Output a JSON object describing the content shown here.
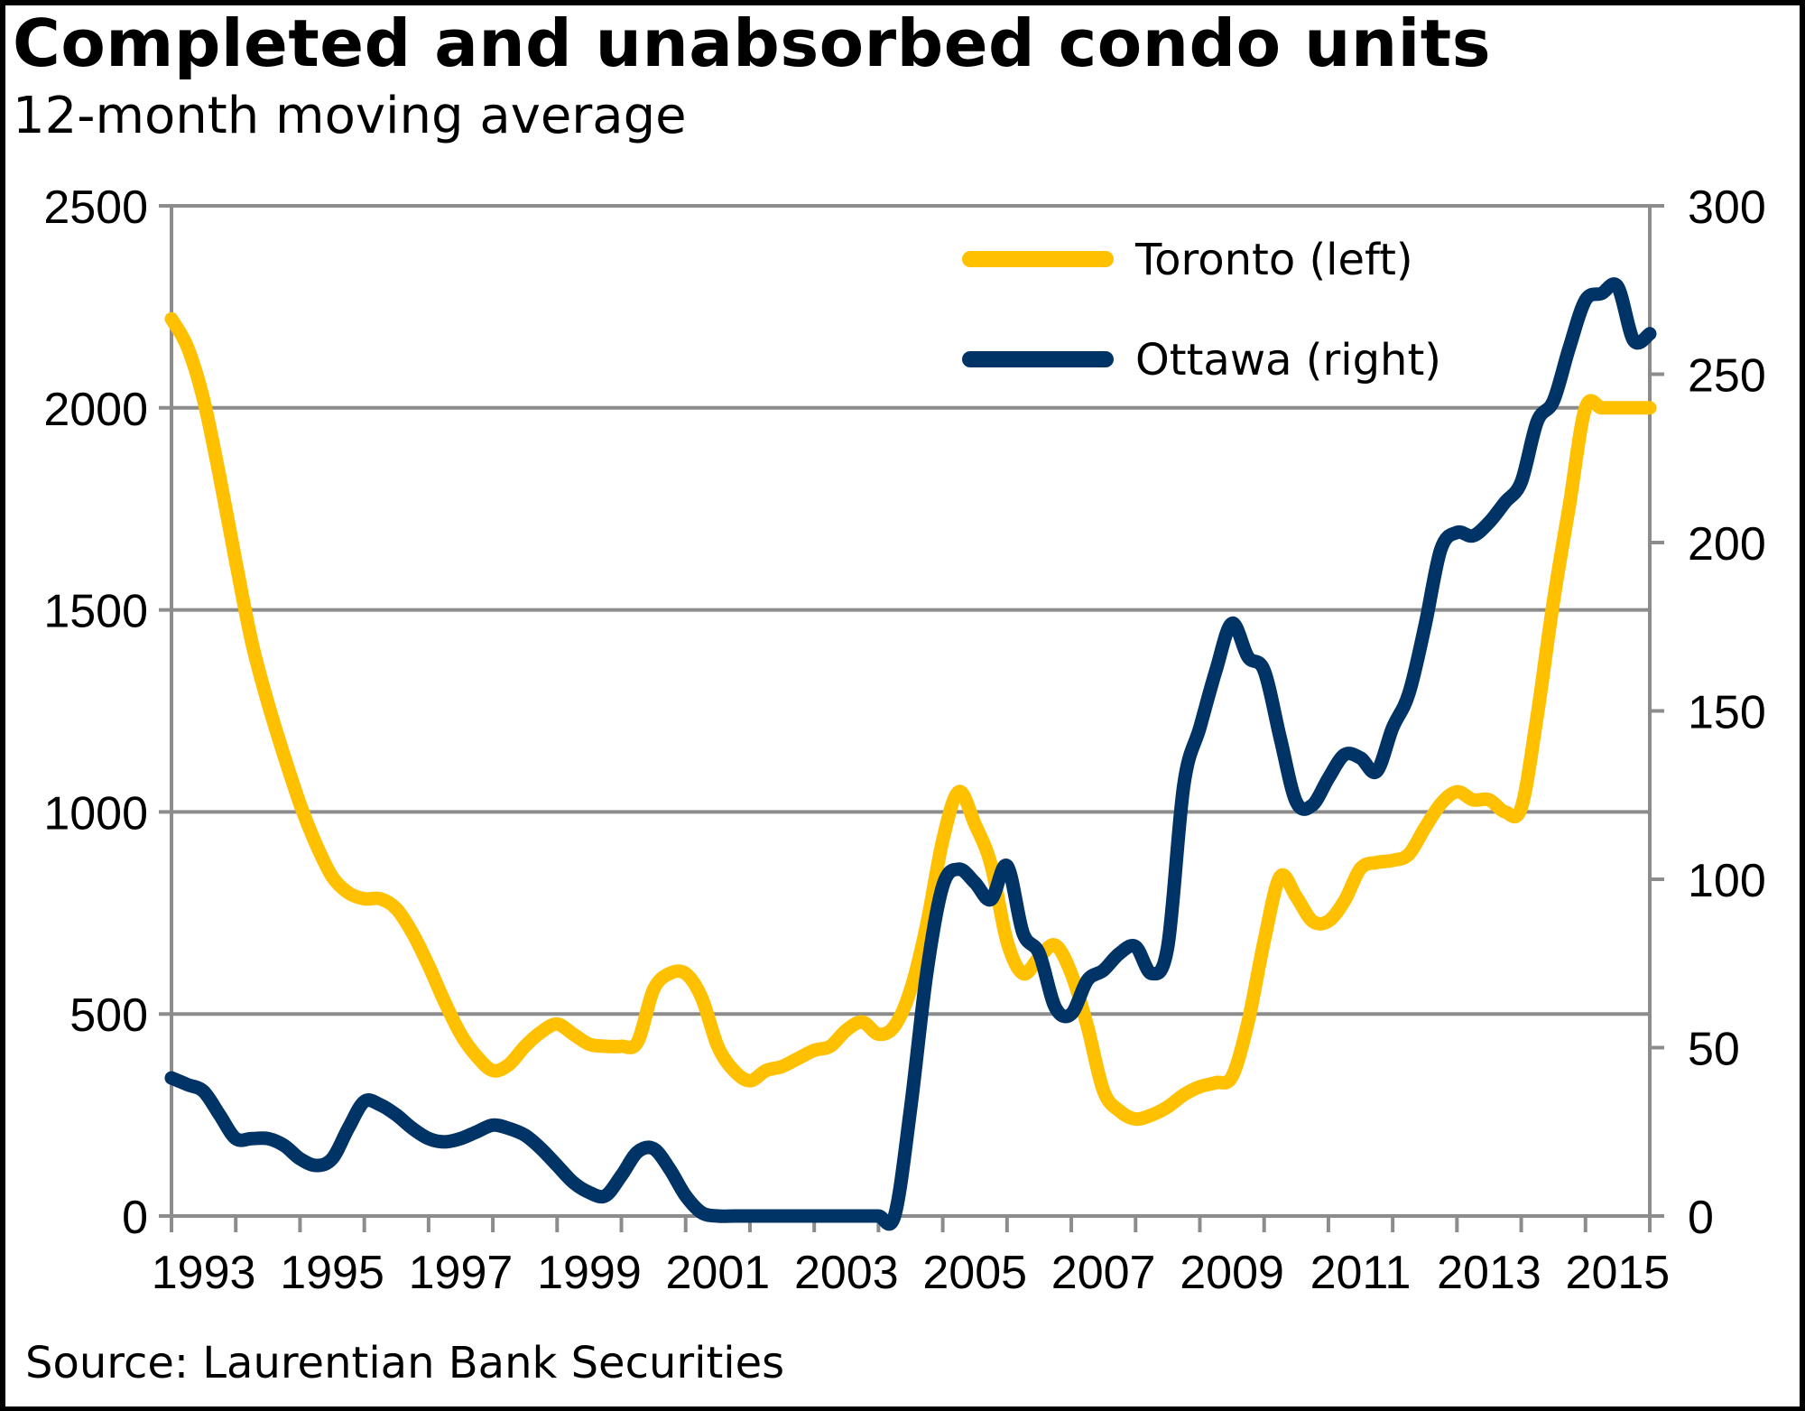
{
  "chart_data": {
    "type": "line",
    "title": "Completed and unabsorbed condo units",
    "subtitle": "12-month moving average",
    "source": "Source: Laurentian Bank Securities",
    "xlabel": "",
    "ylabel_left": "",
    "ylabel_right": "",
    "x_range": [
      1993,
      2016
    ],
    "x_tick_labels": [
      "1993",
      "1995",
      "1997",
      "1999",
      "2001",
      "2003",
      "2005",
      "2007",
      "2009",
      "2011",
      "2013",
      "2015"
    ],
    "y_left": {
      "range": [
        0,
        2500
      ],
      "ticks": [
        0,
        500,
        1000,
        1500,
        2000,
        2500
      ]
    },
    "y_right": {
      "range": [
        0,
        300
      ],
      "ticks": [
        0,
        50,
        100,
        150,
        200,
        250,
        300
      ]
    },
    "grid": true,
    "legend_position": "top-right",
    "series": [
      {
        "name": "Toronto (left)",
        "axis": "left",
        "color": "#FFC000",
        "x": [
          1993.0,
          1993.25,
          1993.5,
          1993.75,
          1994.0,
          1994.25,
          1994.5,
          1994.75,
          1995.0,
          1995.25,
          1995.5,
          1995.75,
          1996.0,
          1996.25,
          1996.5,
          1996.75,
          1997.0,
          1997.25,
          1997.5,
          1997.75,
          1998.0,
          1998.25,
          1998.5,
          1998.75,
          1999.0,
          1999.25,
          1999.5,
          1999.75,
          2000.0,
          2000.25,
          2000.5,
          2000.75,
          2001.0,
          2001.25,
          2001.5,
          2001.75,
          2002.0,
          2002.25,
          2002.5,
          2002.75,
          2003.0,
          2003.25,
          2003.5,
          2003.75,
          2004.0,
          2004.25,
          2004.5,
          2004.75,
          2005.0,
          2005.25,
          2005.5,
          2005.75,
          2006.0,
          2006.25,
          2006.5,
          2006.75,
          2007.0,
          2007.25,
          2007.5,
          2007.75,
          2008.0,
          2008.25,
          2008.5,
          2008.75,
          2009.0,
          2009.25,
          2009.5,
          2009.75,
          2010.0,
          2010.25,
          2010.5,
          2010.75,
          2011.0,
          2011.25,
          2011.5,
          2011.75,
          2012.0,
          2012.25,
          2012.5,
          2012.75,
          2013.0,
          2013.25,
          2013.5,
          2013.75,
          2014.0,
          2014.25,
          2014.5,
          2014.75,
          2015.0,
          2015.25,
          2015.5,
          2015.75,
          2016.0
        ],
        "values": [
          2220,
          2150,
          2020,
          1830,
          1620,
          1420,
          1270,
          1140,
          1020,
          920,
          840,
          800,
          785,
          785,
          760,
          700,
          620,
          530,
          450,
          395,
          360,
          375,
          420,
          455,
          475,
          450,
          425,
          420,
          420,
          430,
          560,
          600,
          600,
          540,
          420,
          360,
          335,
          360,
          370,
          390,
          410,
          420,
          460,
          480,
          450,
          470,
          560,
          720,
          930,
          1050,
          970,
          870,
          680,
          600,
          640,
          670,
          600,
          470,
          310,
          260,
          240,
          250,
          270,
          300,
          320,
          330,
          345,
          480,
          680,
          840,
          790,
          730,
          730,
          780,
          860,
          875,
          880,
          895,
          960,
          1020,
          1050,
          1030,
          1030,
          1000,
          1010,
          1240,
          1520,
          1760,
          2000,
          2000,
          2000,
          2000,
          2000
        ]
      },
      {
        "name": "Ottawa (right)",
        "axis": "right",
        "color": "#003366",
        "x": [
          1993.0,
          1993.25,
          1993.5,
          1993.75,
          1994.0,
          1994.25,
          1994.5,
          1994.75,
          1995.0,
          1995.25,
          1995.5,
          1995.75,
          1996.0,
          1996.25,
          1996.5,
          1996.75,
          1997.0,
          1997.25,
          1997.5,
          1997.75,
          1998.0,
          1998.25,
          1998.5,
          1998.75,
          1999.0,
          1999.25,
          1999.5,
          1999.75,
          2000.0,
          2000.25,
          2000.5,
          2000.75,
          2001.0,
          2001.25,
          2001.5,
          2001.75,
          2002.0,
          2002.25,
          2002.5,
          2002.75,
          2003.0,
          2003.25,
          2003.5,
          2003.75,
          2004.0,
          2004.25,
          2004.5,
          2004.75,
          2005.0,
          2005.25,
          2005.5,
          2005.75,
          2006.0,
          2006.25,
          2006.5,
          2006.75,
          2007.0,
          2007.25,
          2007.5,
          2007.75,
          2008.0,
          2008.25,
          2008.5,
          2008.75,
          2009.0,
          2009.25,
          2009.5,
          2009.75,
          2010.0,
          2010.25,
          2010.5,
          2010.75,
          2011.0,
          2011.25,
          2011.5,
          2011.75,
          2012.0,
          2012.25,
          2012.5,
          2012.75,
          2013.0,
          2013.25,
          2013.5,
          2013.75,
          2014.0,
          2014.25,
          2014.5,
          2014.75,
          2015.0,
          2015.25,
          2015.5,
          2015.75,
          2016.0
        ],
        "values": [
          41,
          39,
          37,
          30,
          23,
          23,
          23,
          21,
          17,
          15,
          17,
          26,
          34,
          33,
          30,
          26,
          23,
          22,
          23,
          25,
          27,
          26,
          24,
          20,
          15,
          10,
          7,
          6,
          12,
          19,
          20,
          14,
          6,
          1,
          0,
          0,
          0,
          0,
          0,
          0,
          0,
          0,
          0,
          0,
          0,
          0,
          32,
          72,
          98,
          103,
          99,
          94,
          104,
          84,
          78,
          62,
          60,
          70,
          73,
          78,
          80,
          72,
          80,
          128,
          145,
          162,
          176,
          166,
          162,
          142,
          123,
          122,
          130,
          137,
          136,
          132,
          145,
          155,
          175,
          198,
          203,
          202,
          206,
          212,
          218,
          236,
          242,
          258,
          272,
          274,
          276,
          260,
          262
        ]
      }
    ]
  },
  "legend": {
    "items": [
      {
        "label": "Toronto (left)",
        "color": "#FFC000"
      },
      {
        "label": "Ottawa (right)",
        "color": "#003366"
      }
    ]
  }
}
